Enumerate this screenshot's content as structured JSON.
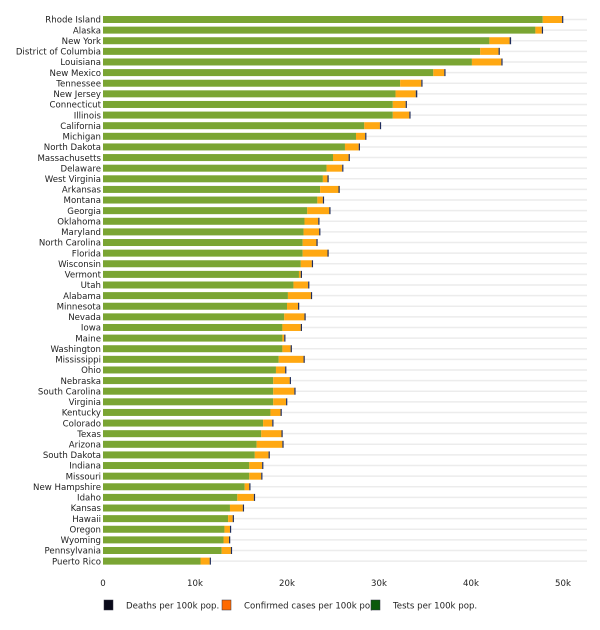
{
  "chart_data": {
    "type": "bar",
    "orientation": "horizontal",
    "stacked": true,
    "categories": [
      "Rhode Island",
      "Alaska",
      "New York",
      "District of Columbia",
      "Louisiana",
      "New Mexico",
      "Tennessee",
      "New Jersey",
      "Connecticut",
      "Illinois",
      "California",
      "Michigan",
      "North Dakota",
      "Massachusetts",
      "Delaware",
      "West Virginia",
      "Arkansas",
      "Montana",
      "Georgia",
      "Oklahoma",
      "Maryland",
      "North Carolina",
      "Florida",
      "Wisconsin",
      "Vermont",
      "Utah",
      "Alabama",
      "Minnesota",
      "Nevada",
      "Iowa",
      "Maine",
      "Washington",
      "Mississippi",
      "Ohio",
      "Nebraska",
      "South Carolina",
      "Virginia",
      "Kentucky",
      "Colorado",
      "Texas",
      "Arizona",
      "South Dakota",
      "Indiana",
      "Missouri",
      "New Hampshire",
      "Idaho",
      "Kansas",
      "Hawaii",
      "Oregon",
      "Wyoming",
      "Pennsylvania",
      "Puerto Rico"
    ],
    "series": [
      {
        "name": "Tests per 100k pop.",
        "color": "#7aa533",
        "legend_color": "#0b5a0b",
        "values": [
          47800,
          47000,
          42000,
          41000,
          40100,
          35900,
          32300,
          31800,
          31500,
          31500,
          28400,
          27500,
          26300,
          25000,
          24300,
          23900,
          23600,
          23300,
          22200,
          21900,
          21800,
          21700,
          21700,
          21500,
          21300,
          20700,
          20100,
          20000,
          19700,
          19500,
          19500,
          19500,
          19100,
          18800,
          18500,
          18500,
          18500,
          18200,
          17400,
          17200,
          16700,
          16500,
          15900,
          15900,
          15400,
          14600,
          13800,
          13600,
          13200,
          13100,
          12900,
          10600
        ]
      },
      {
        "name": "Confirmed cases per 100k pop.",
        "color": "#ffa812",
        "legend_color": "#ff6a00",
        "values": [
          2100,
          700,
          2200,
          2000,
          3200,
          1200,
          2300,
          2200,
          1400,
          1800,
          1700,
          1000,
          1500,
          1700,
          1700,
          500,
          2000,
          600,
          2400,
          1500,
          1700,
          1500,
          2700,
          1200,
          200,
          1600,
          2500,
          1200,
          2200,
          2000,
          200,
          900,
          2700,
          1000,
          1800,
          2300,
          1400,
          1100,
          1000,
          2200,
          2800,
          1500,
          1400,
          1300,
          500,
          1800,
          1400,
          500,
          600,
          600,
          1000,
          1000
        ]
      },
      {
        "name": "Deaths per 100k pop.",
        "color": "#1f2d5c",
        "legend_color": "#0a0a1a",
        "values": [
          30,
          10,
          160,
          110,
          110,
          20,
          20,
          160,
          110,
          40,
          50,
          100,
          20,
          110,
          70,
          50,
          20,
          10,
          100,
          20,
          60,
          30,
          100,
          60,
          10,
          20,
          30,
          70,
          30,
          60,
          10,
          30,
          100,
          40,
          20,
          60,
          50,
          50,
          30,
          30,
          40,
          20,
          60,
          30,
          50,
          10,
          20,
          10,
          10,
          10,
          80,
          30
        ]
      }
    ],
    "legend_order": [
      "Deaths per 100k pop.",
      "Confirmed cases per 100k pop.",
      "Tests per 100k pop."
    ],
    "xlim": [
      0,
      53000
    ],
    "xticks": [
      0,
      10000,
      20000,
      30000,
      40000,
      50000
    ],
    "xtick_labels": [
      "0",
      "10k",
      "20k",
      "30k",
      "40k",
      "50k"
    ],
    "title": "",
    "xlabel": "",
    "ylabel": "",
    "grid": true,
    "legend_position": "bottom"
  }
}
